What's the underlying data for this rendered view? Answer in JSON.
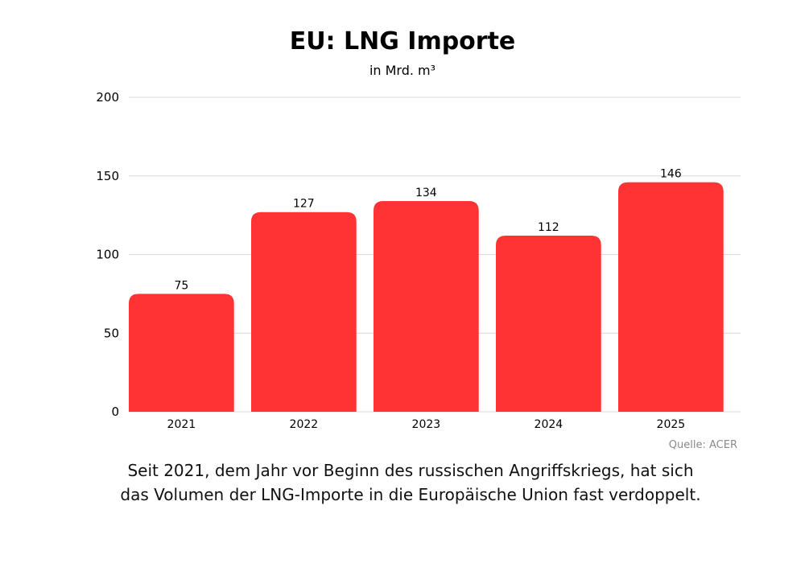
{
  "chart_data": {
    "type": "bar",
    "title": "EU: LNG Importe",
    "subtitle": "in Mrd. m³",
    "categories": [
      "2021",
      "2022",
      "2023",
      "2024",
      "2025"
    ],
    "values": [
      75,
      127,
      134,
      112,
      146
    ],
    "data_labels": [
      "75",
      "127",
      "134",
      "112",
      "146"
    ],
    "ylim": [
      0,
      200
    ],
    "yticks": [
      0,
      50,
      100,
      150,
      200
    ],
    "ytick_labels": [
      "0",
      "50",
      "100",
      "150",
      "200"
    ],
    "grid": true,
    "xlabel": "",
    "ylabel": "",
    "colors": {
      "bar": "#ff3333",
      "grid": "#d9d9d9",
      "text": "#000000"
    }
  },
  "source": "Quelle: ACER",
  "caption": "Seit 2021, dem Jahr vor Beginn des russischen Angriffskriegs, hat sich das Volumen der LNG-Importe in die Europäische Union fast verdoppelt."
}
